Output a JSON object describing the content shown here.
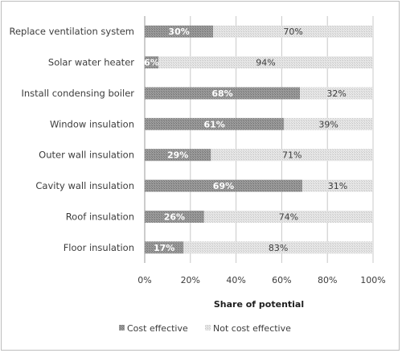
{
  "chart_data": {
    "type": "bar",
    "orientation": "horizontal",
    "stacked": true,
    "categories": [
      "Replace ventilation system",
      "Solar water heater",
      "Install condensing boiler",
      "Window insulation",
      "Outer wall insulation",
      "Cavity wall insulation",
      "Roof insulation",
      "Floor insulation"
    ],
    "series": [
      {
        "name": "Cost effective",
        "values": [
          30,
          6,
          68,
          61,
          29,
          69,
          26,
          17
        ],
        "labels": [
          "30%",
          "6%",
          "68%",
          "61%",
          "29%",
          "69%",
          "26%",
          "17%"
        ],
        "color": "#8c8c8c"
      },
      {
        "name": "Not cost effective",
        "values": [
          70,
          94,
          32,
          39,
          71,
          31,
          74,
          83
        ],
        "labels": [
          "70%",
          "94%",
          "32%",
          "39%",
          "71%",
          "31%",
          "74%",
          "83%"
        ],
        "color": "#dedede"
      }
    ],
    "xlabel": "Share of potential",
    "xlim": [
      0,
      100
    ],
    "xticks": [
      0,
      20,
      40,
      60,
      80,
      100
    ],
    "xtick_labels": [
      "0%",
      "20%",
      "40%",
      "60%",
      "80%",
      "100%"
    ],
    "grid": true,
    "legend": "bottom"
  }
}
